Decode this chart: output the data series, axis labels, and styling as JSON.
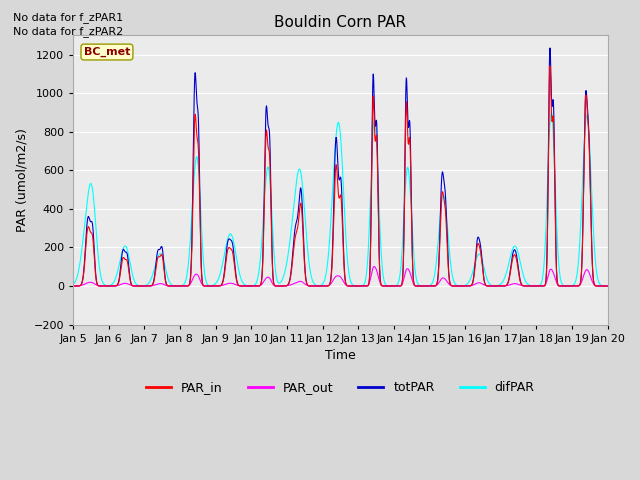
{
  "title": "Bouldin Corn PAR",
  "ylabel": "PAR (umol/m2/s)",
  "xlabel": "Time",
  "no_data_text": [
    "No data for f_zPAR1",
    "No data for f_zPAR2"
  ],
  "legend_label_text": "BC_met",
  "ylim": [
    -200,
    1300
  ],
  "yticks": [
    -200,
    0,
    200,
    400,
    600,
    800,
    1000,
    1200
  ],
  "bg_color": "#d8d8d8",
  "plot_bg": "#ebebeb",
  "colors": {
    "PAR_in": "#ff0000",
    "PAR_out": "#ff00ff",
    "totPAR": "#0000cc",
    "difPAR": "#00ffff"
  },
  "x_start": 5,
  "x_end": 20,
  "x_ticks": [
    5,
    6,
    7,
    8,
    9,
    10,
    11,
    12,
    13,
    14,
    15,
    16,
    17,
    18,
    19,
    20
  ],
  "x_tick_labels": [
    "Jan 5",
    "Jan 6",
    "Jan 7",
    "Jan 8",
    "Jan 9",
    "Jan 10",
    "Jan 11",
    "Jan 12",
    "Jan 13",
    "Jan 14",
    "Jan 15",
    "Jan 16",
    "Jan 17",
    "Jan 18",
    "Jan 19",
    "Jan 20"
  ]
}
